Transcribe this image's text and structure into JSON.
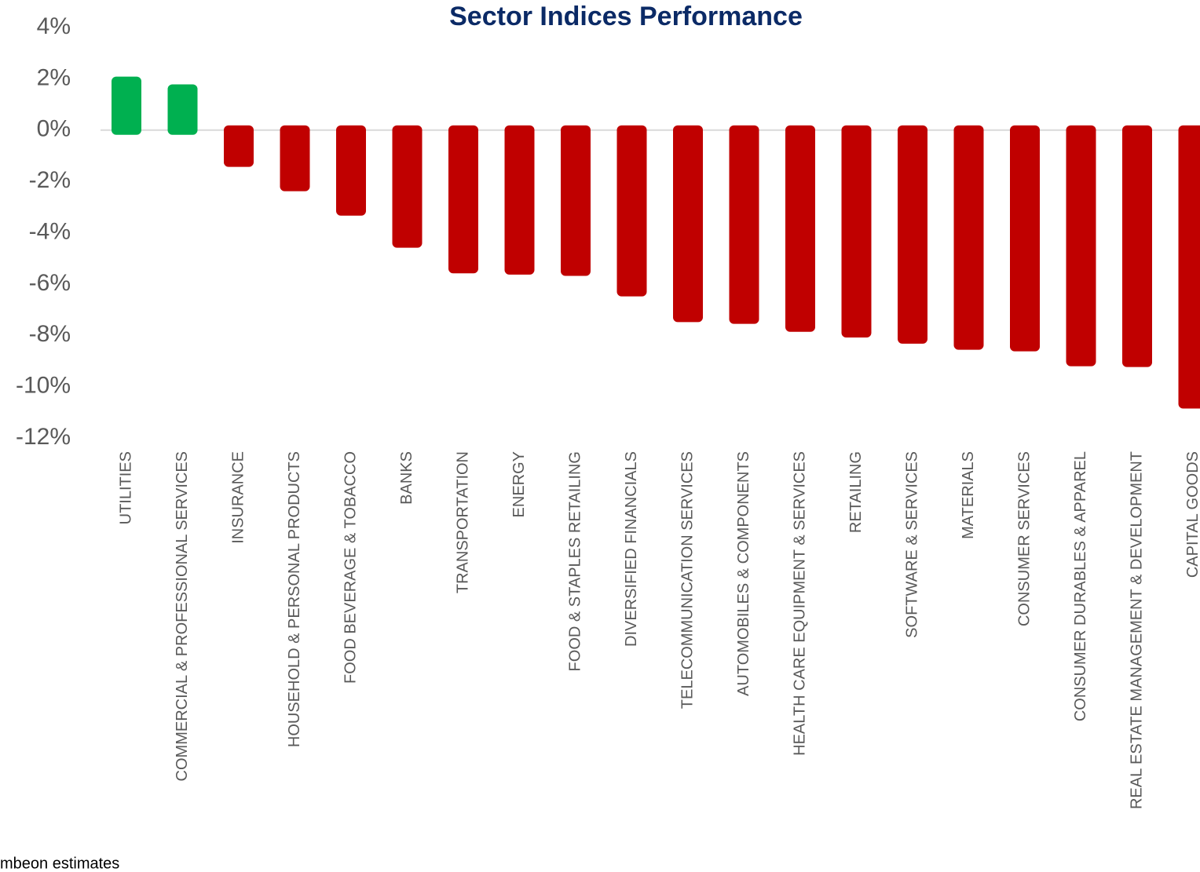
{
  "chart_data": {
    "type": "bar",
    "title": "Sector Indices Performance",
    "categories": [
      "UTILITIES",
      "COMMERCIAL  & PROFESSIONAL SERVICES",
      "INSURANCE",
      "HOUSEHOLD & PERSONAL PRODUCTS",
      "FOOD BEVERAGE & TOBACCO",
      "BANKS",
      "TRANSPORTATION",
      "ENERGY",
      "FOOD & STAPLES RETAILING",
      "DIVERSIFIED FINANCIALS",
      "TELECOMMUNICATION SERVICES",
      "AUTOMOBILES & COMPONENTS",
      "HEALTH CARE EQUIPMENT & SERVICES",
      "RETAILING",
      "SOFTWARE & SERVICES",
      "MATERIALS",
      "CONSUMER SERVICES",
      "CONSUMER DURABLES & APPAREL",
      "REAL ESTATE MANAGEMENT & DEVELOPMENT",
      "CAPITAL GOODS"
    ],
    "values": [
      1.9,
      1.6,
      -1.25,
      -2.2,
      -3.15,
      -4.4,
      -5.4,
      -5.45,
      -5.5,
      -6.3,
      -7.3,
      -7.37,
      -7.68,
      -7.9,
      -8.14,
      -8.38,
      -8.44,
      -9.02,
      -9.05,
      -10.67
    ],
    "positive_color": "#00b050",
    "negative_color": "#c00000",
    "ylim": [
      -12,
      4
    ],
    "yticks": [
      {
        "value": -12,
        "label": "-12%"
      },
      {
        "value": -10,
        "label": "-10%"
      },
      {
        "value": -8,
        "label": "-8%"
      },
      {
        "value": -6,
        "label": "-6%"
      },
      {
        "value": -4,
        "label": "-4%"
      },
      {
        "value": -2,
        "label": "-2%"
      },
      {
        "value": 0,
        "label": "0%"
      },
      {
        "value": 2,
        "label": "2%"
      },
      {
        "value": 4,
        "label": "4%"
      }
    ],
    "grid": false,
    "footnote": "mbeon estimates"
  }
}
